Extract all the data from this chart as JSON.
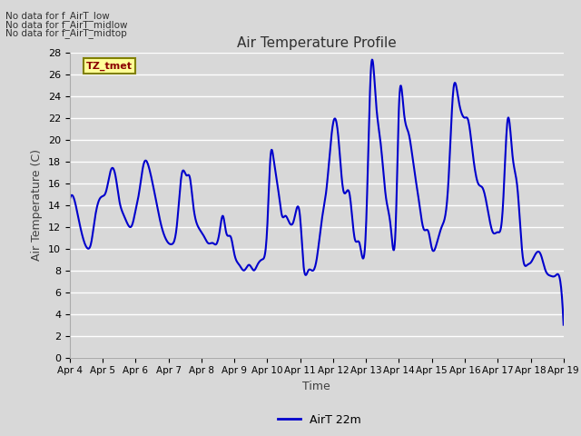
{
  "title": "Air Temperature Profile",
  "xlabel": "Time",
  "ylabel": "Air Temperature (C)",
  "ylim": [
    0,
    28
  ],
  "yticks": [
    0,
    2,
    4,
    6,
    8,
    10,
    12,
    14,
    16,
    18,
    20,
    22,
    24,
    26,
    28
  ],
  "line_color": "#0000CC",
  "line_width": 1.5,
  "legend_label": "AirT 22m",
  "background_color": "#d8d8d8",
  "plot_bg_color": "#d8d8d8",
  "text_color": "#404040",
  "annotations": [
    "No data for f_AirT_low",
    "No data for f_AirT_midlow",
    "No data for f_AirT_midtop"
  ],
  "tz_label": "TZ_tmet",
  "x_tick_labels": [
    "Apr 4",
    "Apr 5",
    "Apr 6",
    "Apr 7",
    "Apr 8",
    "Apr 9",
    "Apr 10",
    "Apr 11",
    "Apr 12",
    "Apr 13",
    "Apr 14",
    "Apr 15",
    "Apr 16",
    "Apr 17",
    "Apr 18",
    "Apr 19"
  ],
  "key_x": [
    0,
    0.1,
    0.25,
    0.4,
    0.55,
    0.65,
    0.75,
    0.9,
    1.0,
    1.1,
    1.25,
    1.4,
    1.5,
    1.65,
    1.75,
    1.9,
    2.0,
    2.1,
    2.25,
    2.4,
    2.55,
    2.65,
    2.75,
    2.9,
    3.0,
    3.1,
    3.25,
    3.4,
    3.55,
    3.65,
    3.75,
    3.9,
    4.0,
    4.1,
    4.2,
    4.35,
    4.45,
    4.55,
    4.65,
    4.75,
    4.9,
    5.0,
    5.15,
    5.3,
    5.45,
    5.6,
    5.7,
    5.85,
    6.0,
    6.1,
    6.2,
    6.35,
    6.45,
    6.55,
    6.65,
    6.8,
    7.0,
    7.1,
    7.25,
    7.4,
    7.5,
    7.65,
    7.8,
    8.0,
    8.15,
    8.3,
    8.5,
    8.65,
    8.8,
    9.0,
    9.15,
    9.3,
    9.45,
    9.6,
    9.75,
    9.9,
    10.0,
    10.15,
    10.3,
    10.45,
    10.6,
    10.75,
    10.9,
    11.0,
    11.15,
    11.3,
    11.5,
    11.65,
    11.8,
    12.0,
    12.1,
    12.25,
    12.4,
    12.55,
    12.7,
    12.85,
    13.0,
    13.15,
    13.3,
    13.45,
    13.6,
    13.75,
    13.9,
    14.0,
    14.15,
    14.3,
    14.45,
    14.6,
    14.75,
    14.9,
    15.0
  ],
  "key_y": [
    14.5,
    14.8,
    13.0,
    11.0,
    10.0,
    10.5,
    12.5,
    14.5,
    14.8,
    15.2,
    17.2,
    16.5,
    14.5,
    13.0,
    12.3,
    12.2,
    13.5,
    15.0,
    17.8,
    17.5,
    15.5,
    14.0,
    12.5,
    11.0,
    10.5,
    10.4,
    12.0,
    16.8,
    16.7,
    16.5,
    14.0,
    12.0,
    11.5,
    11.0,
    10.5,
    10.5,
    10.4,
    11.5,
    13.0,
    11.5,
    11.0,
    9.5,
    8.5,
    8.0,
    8.5,
    8.0,
    8.5,
    9.0,
    12.0,
    18.5,
    18.0,
    15.0,
    13.0,
    13.0,
    12.5,
    12.5,
    12.8,
    8.5,
    8.0,
    8.0,
    9.0,
    12.5,
    15.5,
    21.5,
    20.5,
    15.5,
    15.0,
    11.0,
    10.5,
    12.0,
    26.5,
    23.5,
    19.5,
    14.8,
    12.0,
    12.0,
    23.0,
    22.5,
    20.5,
    17.5,
    14.5,
    11.8,
    11.5,
    10.0,
    10.5,
    12.0,
    16.0,
    24.5,
    23.8,
    22.0,
    21.8,
    18.5,
    16.0,
    15.5,
    13.5,
    11.5,
    11.5,
    13.5,
    21.8,
    18.5,
    15.5,
    9.5,
    8.5,
    8.7,
    9.5,
    9.5,
    8.0,
    7.5,
    7.5,
    7.0,
    3.0
  ]
}
